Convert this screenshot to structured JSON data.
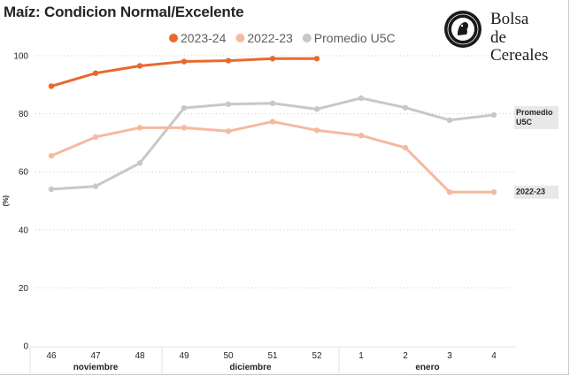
{
  "title": "Maíz: Condicion Normal/Excelente",
  "logo": {
    "line1": "Bolsa",
    "line2": "de Cereales"
  },
  "chart_data": {
    "type": "line",
    "ylabel": "(%)",
    "ylim": [
      0,
      100
    ],
    "yticks": [
      0,
      20,
      40,
      60,
      80,
      100
    ],
    "grid": true,
    "legend_position": "top",
    "categories": [
      "46",
      "47",
      "48",
      "49",
      "50",
      "51",
      "52",
      "1",
      "2",
      "3",
      "4"
    ],
    "month_groups": [
      {
        "label": "noviembre",
        "categories": [
          "46",
          "47",
          "48"
        ]
      },
      {
        "label": "diciembre",
        "categories": [
          "49",
          "50",
          "51",
          "52"
        ]
      },
      {
        "label": "enero",
        "categories": [
          "1",
          "2",
          "3",
          "4"
        ]
      }
    ],
    "series": [
      {
        "name": "2023-24",
        "color": "#e8692f",
        "values": [
          89.5,
          94.0,
          96.5,
          98.0,
          98.3,
          99.0,
          99.0,
          null,
          null,
          null,
          null
        ]
      },
      {
        "name": "2022-23",
        "color": "#f6b9a0",
        "end_label": "2022-23",
        "values": [
          65.5,
          72.0,
          75.2,
          75.2,
          74.0,
          77.3,
          74.3,
          72.5,
          68.3,
          53.0,
          53.0
        ]
      },
      {
        "name": "Promedio U5C",
        "color": "#c8c8c8",
        "end_label": "Promedio U5C",
        "values": [
          54.0,
          55.0,
          63.0,
          82.0,
          83.3,
          83.6,
          81.6,
          85.4,
          82.1,
          77.8,
          79.6
        ]
      }
    ]
  }
}
